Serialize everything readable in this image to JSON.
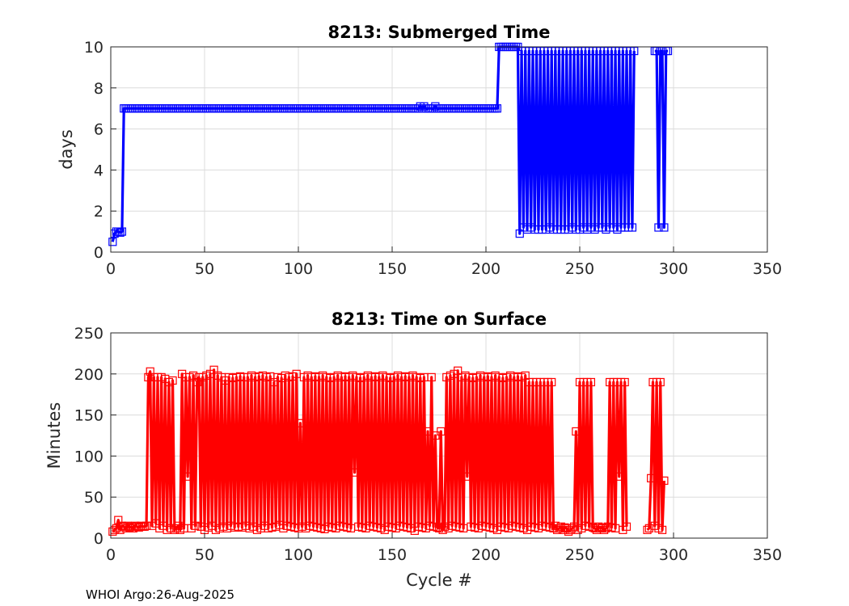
{
  "footer": "WHOI Argo:26-Aug-2025",
  "colors": {
    "series1": "#0000ff",
    "series2": "#ff0000"
  },
  "chart_data": [
    {
      "type": "line",
      "title": "8213: Submerged Time",
      "xlabel": "",
      "ylabel": "days",
      "xlim": [
        0,
        350
      ],
      "ylim": [
        0,
        10
      ],
      "xticks": [
        0,
        50,
        100,
        150,
        200,
        250,
        300,
        350
      ],
      "yticks": [
        0,
        2,
        4,
        6,
        8,
        10
      ],
      "grid": true,
      "marker": "square",
      "series": [
        {
          "name": "Submerged Time",
          "color": "#0000ff",
          "values": [
            0.5,
            0.9,
            1,
            1,
            0.95,
            1,
            7,
            7,
            7,
            7,
            7,
            7,
            7,
            7,
            7,
            7,
            7,
            7,
            7,
            7,
            7,
            7,
            7,
            7,
            7,
            7,
            7,
            7,
            7,
            7,
            7,
            7,
            7,
            7,
            7,
            7,
            7,
            7,
            7,
            7,
            7,
            7,
            7,
            7,
            7,
            7,
            7,
            7,
            7,
            7,
            7,
            7,
            7,
            7,
            7,
            7,
            7,
            7,
            7,
            7,
            7,
            7,
            7,
            7,
            7,
            7,
            7,
            7,
            7,
            7,
            7,
            7,
            7,
            7,
            7,
            7,
            7,
            7,
            7,
            7,
            7,
            7,
            7,
            7,
            7,
            7,
            7,
            7,
            7,
            7,
            7,
            7,
            7,
            7,
            7,
            7,
            7,
            7,
            7,
            7,
            7,
            7,
            7,
            7,
            7,
            7,
            7,
            7,
            7,
            7,
            7,
            7,
            7,
            7,
            7,
            7,
            7,
            7,
            7,
            7,
            7,
            7,
            7,
            7,
            7,
            7,
            7,
            7,
            7,
            7,
            7,
            7,
            7,
            7,
            7,
            7,
            7,
            7,
            7,
            7,
            7,
            7,
            7,
            7,
            7,
            7,
            7,
            7,
            7,
            7,
            7,
            7,
            7,
            7,
            7,
            7,
            7,
            7,
            7,
            7,
            7,
            7,
            7,
            7,
            7.1,
            7,
            7.1,
            7,
            7,
            7,
            7,
            7,
            7.1,
            7,
            7,
            7,
            7,
            7,
            7,
            7,
            7,
            7,
            7,
            7,
            7,
            7,
            7,
            7,
            7,
            7,
            7,
            7,
            7,
            7,
            7,
            7,
            7,
            7,
            7,
            7,
            7,
            7,
            7,
            7,
            7,
            7,
            10,
            10,
            10,
            10,
            10,
            10,
            10,
            10,
            10,
            10,
            10,
            0.9,
            9.8,
            1.2,
            9.8,
            1.1,
            9.8,
            1.2,
            9.8,
            1.1,
            9.8,
            1.1,
            9.8,
            1.1,
            9.8,
            1.1,
            9.8,
            1.2,
            9.8,
            1.1,
            9.8,
            1.1,
            9.8,
            1.1,
            9.8,
            1.1,
            9.8,
            1.1,
            9.8,
            1.2,
            9.8,
            1.1,
            9.8,
            1.1,
            9.8,
            1.2,
            9.8,
            1.1,
            9.8,
            1.2,
            9.8,
            1.1,
            9.8,
            1.2,
            9.8,
            1.2,
            9.8,
            1.1,
            9.8,
            1.2,
            9.8,
            1.2,
            9.8,
            1.1,
            9.8,
            1.2,
            9.8,
            1.2,
            9.8,
            1.2,
            9.8,
            1.2,
            9.8,
            null,
            null,
            null,
            null,
            null,
            null,
            null,
            null,
            null,
            null,
            9.8,
            9.8,
            1.2,
            9.8,
            9.8,
            1.2,
            9.8,
            9.8
          ]
        }
      ]
    },
    {
      "type": "line",
      "title": "8213: Time on Surface",
      "xlabel": "Cycle #",
      "ylabel": "Minutes",
      "xlim": [
        0,
        350
      ],
      "ylim": [
        0,
        250
      ],
      "xticks": [
        0,
        50,
        100,
        150,
        200,
        250,
        300,
        350
      ],
      "yticks": [
        0,
        50,
        100,
        150,
        200,
        250
      ],
      "grid": true,
      "marker": "square",
      "series": [
        {
          "name": "Time on Surface",
          "color": "#ff0000",
          "values": [
            8,
            10,
            12,
            22,
            10,
            15,
            14,
            12,
            15,
            13,
            14,
            12,
            15,
            14,
            13,
            15,
            14,
            14,
            15,
            196,
            203,
            15,
            196,
            18,
            196,
            12,
            196,
            15,
            194,
            10,
            190,
            12,
            192,
            10,
            12,
            15,
            10,
            200,
            12,
            196,
            75,
            196,
            12,
            198,
            15,
            190,
            196,
            14,
            196,
            10,
            198,
            13,
            200,
            15,
            205,
            10,
            198,
            12,
            196,
            14,
            192,
            12,
            196,
            15,
            195,
            13,
            196,
            14,
            197,
            13,
            196,
            15,
            196,
            12,
            198,
            14,
            196,
            10,
            197,
            12,
            198,
            15,
            196,
            12,
            197,
            13,
            190,
            14,
            196,
            16,
            195,
            12,
            198,
            15,
            196,
            14,
            197,
            13,
            200,
            12,
            140,
            14,
            196,
            12,
            198,
            15,
            196,
            14,
            197,
            13,
            196,
            12,
            198,
            11,
            196,
            14,
            195,
            13,
            196,
            12,
            198,
            15,
            196,
            14,
            197,
            13,
            196,
            12,
            198,
            80,
            196,
            14,
            195,
            13,
            196,
            12,
            198,
            15,
            196,
            14,
            197,
            13,
            196,
            12,
            198,
            10,
            196,
            14,
            195,
            13,
            196,
            12,
            198,
            15,
            196,
            14,
            197,
            13,
            196,
            12,
            198,
            9,
            196,
            14,
            195,
            13,
            196,
            12,
            130,
            15,
            196,
            14,
            125,
            13,
            12,
            130,
            10,
            14,
            196,
            12,
            198,
            15,
            200,
            14,
            204,
            13,
            196,
            12,
            198,
            75,
            196,
            14,
            195,
            13,
            196,
            12,
            198,
            15,
            196,
            14,
            197,
            13,
            196,
            12,
            198,
            10,
            196,
            14,
            195,
            13,
            196,
            12,
            198,
            15,
            196,
            14,
            197,
            13,
            196,
            12,
            198,
            10,
            190,
            14,
            190,
            13,
            190,
            12,
            190,
            15,
            190,
            14,
            190,
            13,
            190,
            12,
            15,
            10,
            12,
            14,
            10,
            13,
            12,
            8,
            10,
            12,
            14,
            130,
            10,
            190,
            12,
            190,
            15,
            190,
            14,
            190,
            13,
            12,
            10,
            14,
            12,
            13,
            10,
            12,
            14,
            190,
            13,
            190,
            12,
            190,
            75,
            190,
            10,
            190,
            14,
            null,
            null,
            null,
            null,
            null,
            null,
            null,
            null,
            null,
            null,
            10,
            12,
            73,
            190,
            15,
            190,
            12,
            190,
            10,
            70
          ]
        }
      ]
    }
  ]
}
